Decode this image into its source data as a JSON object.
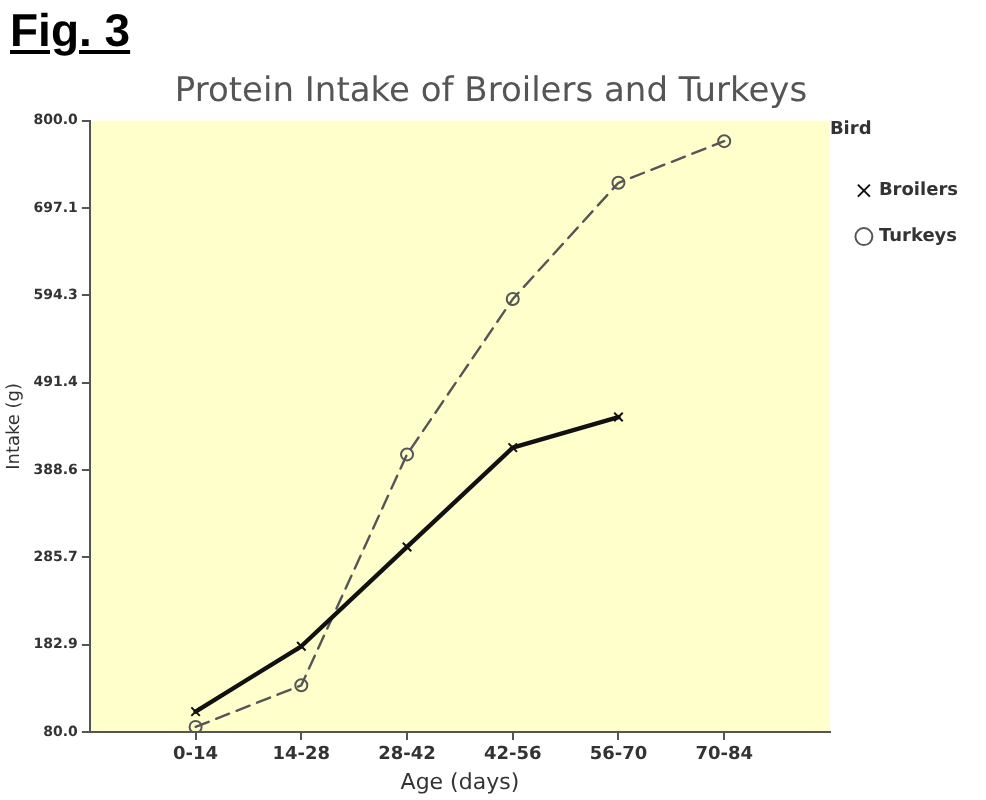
{
  "chart_data": {
    "type": "line",
    "title": "Protein Intake of Broilers and Turkeys",
    "xlabel": "Age (days)",
    "ylabel": "Intake (g)",
    "legend_title": "Bird",
    "annotations": [
      "Fig. 3"
    ],
    "categories": [
      "0-14",
      "14-28",
      "28-42",
      "42-56",
      "56-70",
      "70-84"
    ],
    "series": [
      {
        "name": "Broilers",
        "color": "#111111",
        "values": [
          104,
          181,
          298,
          415,
          451,
          null
        ],
        "marker": "cross",
        "line_style": "solid"
      },
      {
        "name": "Turkeys",
        "color": "#555555",
        "values": [
          86,
          135,
          407,
          590,
          727,
          776
        ],
        "marker": "circle",
        "line_style": "dashed"
      }
    ],
    "ylim": [
      80,
      800
    ],
    "yticks": [
      {
        "value": 80,
        "label": "80.0"
      },
      182.9,
      285.7,
      388.6,
      491.4,
      594.3,
      697.1,
      {
        "value": 800,
        "label": "800.0"
      }
    ],
    "grid": false,
    "legend": "top right"
  }
}
